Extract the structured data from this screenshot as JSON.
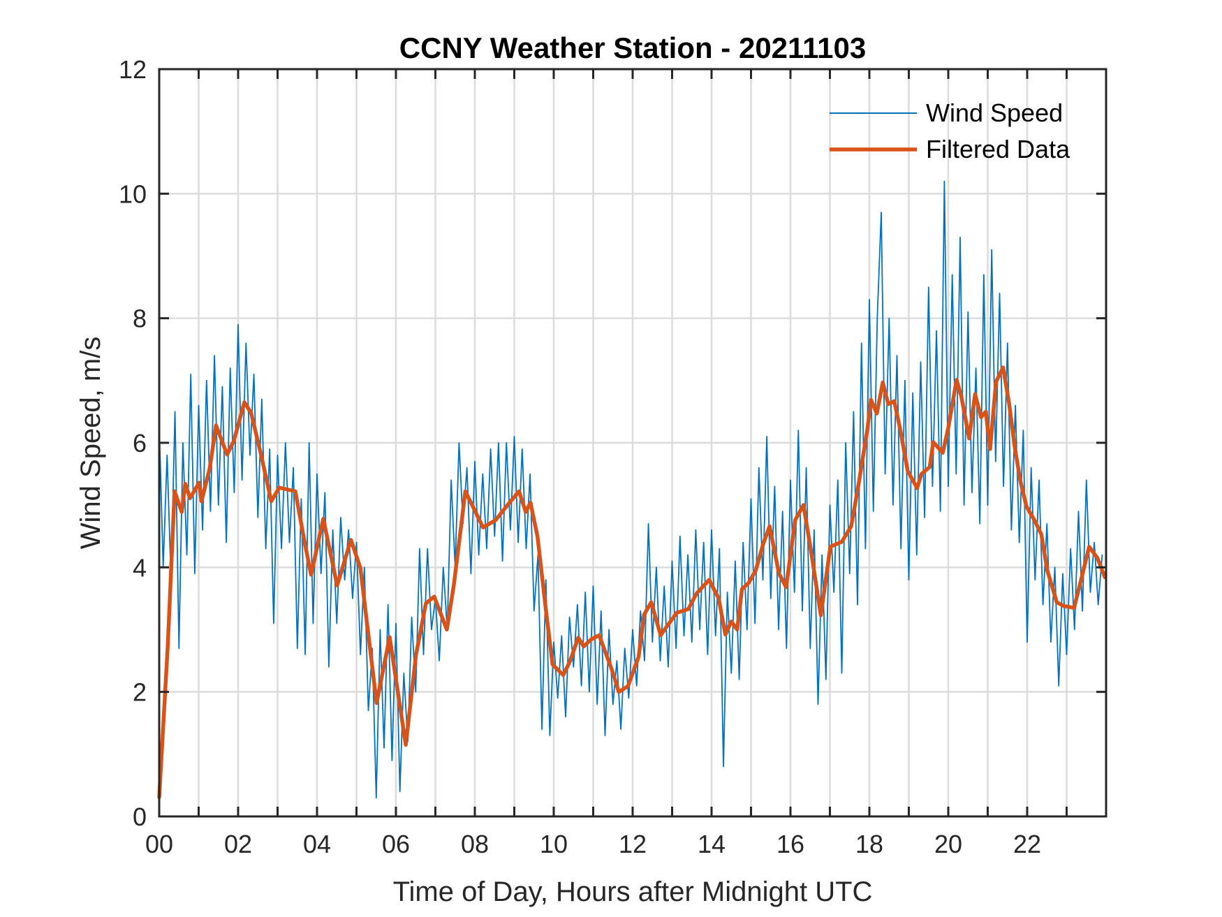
{
  "chart_data": {
    "type": "line",
    "title": "CCNY Weather Station - 20211103",
    "xlabel": "Time of Day, Hours after Midnight UTC",
    "ylabel": "Wind Speed, m/s",
    "xlim": [
      0,
      24
    ],
    "ylim": [
      0,
      12
    ],
    "grid": true,
    "x_ticks": [
      0,
      2,
      4,
      6,
      8,
      10,
      12,
      14,
      16,
      18,
      20,
      22
    ],
    "x_tick_labels": [
      "00",
      "02",
      "04",
      "06",
      "08",
      "10",
      "12",
      "14",
      "16",
      "18",
      "20",
      "22"
    ],
    "x_minor_grid_every_hours": 1,
    "y_ticks": [
      0,
      2,
      4,
      6,
      8,
      10,
      12
    ],
    "y_tick_labels": [
      "0",
      "2",
      "4",
      "6",
      "8",
      "10",
      "12"
    ],
    "legend": {
      "placement": "top-right",
      "entries": [
        "Wind Speed",
        "Filtered Data"
      ]
    },
    "series": [
      {
        "name": "Wind Speed",
        "color": "#0072BD",
        "x_start": 0,
        "x_step": 0.1,
        "values": [
          6.3,
          4.0,
          5.8,
          3.8,
          6.5,
          2.7,
          6.0,
          4.2,
          7.1,
          3.9,
          6.6,
          4.6,
          7.0,
          4.9,
          7.4,
          5.0,
          6.9,
          4.4,
          7.2,
          5.2,
          7.9,
          5.4,
          7.6,
          5.8,
          7.1,
          4.8,
          6.7,
          4.3,
          5.9,
          3.1,
          5.8,
          4.3,
          6.0,
          4.4,
          5.6,
          2.7,
          5.1,
          2.6,
          6.0,
          3.1,
          5.5,
          3.9,
          5.2,
          2.4,
          4.6,
          3.1,
          4.8,
          3.8,
          4.6,
          3.5,
          4.4,
          2.6,
          4.0,
          1.7,
          2.7,
          0.3,
          3.0,
          1.1,
          3.4,
          0.9,
          3.1,
          0.4,
          2.3,
          1.2,
          3.2,
          2.0,
          4.3,
          2.6,
          4.3,
          3.0,
          3.5,
          2.5,
          4.0,
          3.0,
          5.4,
          4.0,
          6.0,
          4.7,
          5.6,
          3.9,
          5.7,
          4.2,
          5.5,
          4.3,
          5.9,
          4.5,
          6.0,
          4.1,
          6.0,
          4.6,
          6.1,
          4.4,
          5.9,
          4.3,
          5.5,
          3.3,
          4.2,
          1.4,
          3.8,
          1.3,
          2.8,
          1.9,
          2.9,
          1.6,
          3.2,
          2.4,
          3.4,
          2.1,
          3.6,
          2.0,
          3.7,
          1.8,
          3.3,
          1.3,
          3.0,
          1.8,
          2.5,
          1.4,
          2.7,
          1.9,
          3.0,
          2.1,
          3.3,
          2.5,
          4.7,
          2.8,
          4.0,
          2.5,
          3.7,
          2.4,
          4.1,
          2.7,
          4.5,
          2.9,
          4.2,
          2.8,
          4.6,
          3.0,
          4.4,
          2.6,
          4.6,
          2.9,
          4.3,
          0.8,
          3.6,
          2.3,
          4.1,
          2.2,
          4.4,
          3.0,
          5.1,
          3.1,
          5.6,
          3.8,
          6.1,
          3.5,
          5.3,
          3.0,
          4.9,
          2.7,
          5.4,
          3.6,
          6.2,
          3.3,
          5.6,
          2.7,
          4.6,
          1.8,
          4.2,
          2.2,
          5.0,
          3.6,
          5.4,
          2.3,
          6.0,
          3.9,
          6.5,
          3.4,
          7.6,
          4.3,
          8.3,
          4.9,
          8.0,
          9.7,
          5.5,
          8.0,
          5.0,
          7.4,
          4.3,
          7.0,
          3.8,
          6.8,
          4.2,
          7.3,
          4.8,
          8.5,
          5.3,
          7.8,
          4.9,
          10.2,
          5.3,
          8.7,
          5.5,
          9.3,
          5.0,
          8.1,
          5.2,
          7.2,
          4.7,
          8.7,
          5.0,
          9.1,
          5.7,
          8.4,
          5.3,
          7.6,
          4.6,
          6.6,
          4.4,
          6.2,
          2.8,
          5.6,
          3.8,
          5.4,
          3.4,
          4.7,
          2.8,
          4.0,
          2.1,
          3.9,
          2.6,
          4.3,
          3.0,
          4.9,
          3.3,
          5.4,
          3.6,
          4.4,
          3.4,
          4.2
        ]
      },
      {
        "name": "Filtered Data",
        "color": "#D95319",
        "x": [
          0.0,
          0.22,
          0.39,
          0.57,
          0.66,
          0.78,
          1.01,
          1.07,
          1.28,
          1.44,
          1.72,
          1.89,
          2.16,
          2.33,
          2.57,
          2.84,
          3.04,
          3.45,
          3.69,
          3.85,
          4.16,
          4.51,
          4.86,
          5.1,
          5.51,
          5.84,
          6.25,
          6.51,
          6.76,
          6.97,
          7.29,
          7.47,
          7.76,
          8.21,
          8.53,
          8.88,
          9.12,
          9.29,
          9.41,
          9.59,
          9.79,
          9.97,
          10.24,
          10.41,
          10.62,
          10.76,
          10.94,
          11.15,
          11.29,
          11.47,
          11.65,
          11.88,
          12.15,
          12.29,
          12.47,
          12.71,
          12.91,
          13.12,
          13.41,
          13.62,
          13.94,
          14.18,
          14.35,
          14.5,
          14.65,
          14.77,
          14.94,
          15.12,
          15.3,
          15.47,
          15.71,
          15.89,
          16.12,
          16.33,
          16.51,
          16.77,
          17.01,
          17.3,
          17.54,
          17.72,
          17.95,
          18.04,
          18.19,
          18.34,
          18.48,
          18.63,
          18.78,
          18.97,
          19.21,
          19.32,
          19.53,
          19.62,
          19.86,
          20.0,
          20.21,
          20.33,
          20.53,
          20.68,
          20.83,
          20.95,
          21.06,
          21.21,
          21.39,
          21.54,
          21.68,
          21.83,
          21.98,
          22.19,
          22.36,
          22.51,
          22.75,
          22.92,
          23.19,
          23.34,
          23.57,
          23.78,
          23.97
        ],
        "values": [
          0.31,
          2.77,
          5.22,
          4.89,
          5.34,
          5.11,
          5.36,
          5.06,
          5.59,
          6.28,
          5.81,
          6.03,
          6.65,
          6.48,
          5.84,
          5.06,
          5.28,
          5.22,
          4.39,
          3.88,
          4.78,
          3.71,
          4.44,
          3.99,
          1.82,
          2.88,
          1.15,
          2.6,
          3.42,
          3.53,
          3.0,
          3.73,
          5.22,
          4.64,
          4.76,
          5.04,
          5.22,
          4.89,
          5.04,
          4.49,
          3.38,
          2.44,
          2.27,
          2.49,
          2.87,
          2.73,
          2.84,
          2.91,
          2.67,
          2.36,
          2.0,
          2.09,
          2.56,
          3.24,
          3.44,
          2.91,
          3.09,
          3.27,
          3.33,
          3.58,
          3.8,
          3.5,
          2.92,
          3.13,
          3.0,
          3.65,
          3.75,
          3.95,
          4.36,
          4.66,
          3.9,
          3.68,
          4.76,
          5.0,
          4.31,
          3.23,
          4.33,
          4.41,
          4.66,
          5.31,
          6.22,
          6.69,
          6.47,
          6.97,
          6.62,
          6.67,
          6.22,
          5.55,
          5.27,
          5.5,
          5.61,
          6.01,
          5.84,
          6.24,
          7.01,
          6.75,
          6.07,
          6.78,
          6.41,
          6.5,
          5.9,
          6.98,
          7.21,
          6.64,
          5.95,
          5.38,
          4.98,
          4.75,
          4.53,
          3.95,
          3.44,
          3.38,
          3.35,
          3.73,
          4.33,
          4.15,
          3.84
        ]
      }
    ]
  }
}
